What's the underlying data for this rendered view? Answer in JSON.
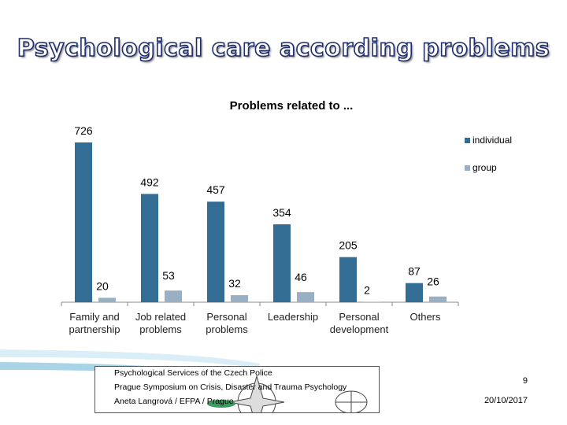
{
  "slide": {
    "title": "Psychological care according problems",
    "footer": {
      "line1": "Psychological Services of the Czech Police",
      "line2": "Prague Symposium on Crisis, Disaster and Trauma Psychology",
      "line3": "Aneta Langrová / EFPA / Prague",
      "page": "9",
      "date": "20/10/2017"
    }
  },
  "chart_data": {
    "type": "bar",
    "title": "Problems related to ...",
    "categories": [
      [
        "Family and",
        "partnership"
      ],
      [
        "Job related",
        "problems"
      ],
      [
        "Personal",
        "problems"
      ],
      [
        "Leadership"
      ],
      [
        "Personal",
        "development"
      ],
      [
        "Others"
      ]
    ],
    "series": [
      {
        "name": "individual",
        "values": [
          726,
          492,
          457,
          354,
          205,
          87
        ],
        "color": "#336d93"
      },
      {
        "name": "group",
        "values": [
          20,
          53,
          32,
          46,
          2,
          26
        ],
        "color": "#99afc4"
      }
    ],
    "ylim": [
      0,
      726
    ],
    "grid": false,
    "legend": "right"
  }
}
